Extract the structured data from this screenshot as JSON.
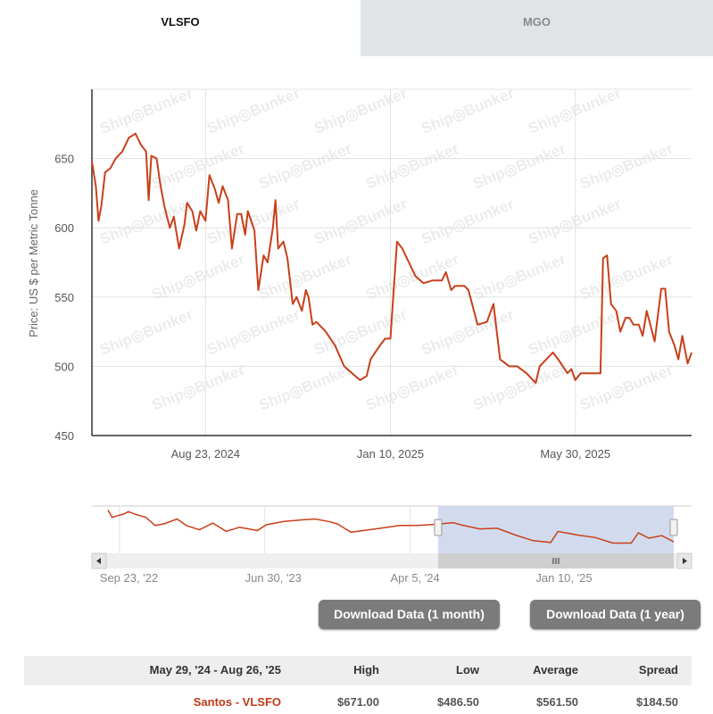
{
  "tabs": [
    {
      "label": "VLSFO",
      "active": true
    },
    {
      "label": "MGO",
      "active": false
    }
  ],
  "colors": {
    "line": "#c8401a",
    "navigator_mask": "#d2dbee",
    "tab_inactive": "#e1e4e7",
    "button": "#7b7b7b",
    "link": "#c0391b"
  },
  "watermark": "Ship◎Bunker",
  "chart_data": {
    "type": "line",
    "ylabel": "Price: US $ per Metric Tonne",
    "ylim": [
      450,
      700
    ],
    "yticks": [
      450,
      500,
      550,
      600,
      650
    ],
    "xlim": [
      "2024-05-29",
      "2025-08-26"
    ],
    "xticks": [
      {
        "date": "2024-08-23",
        "label": "Aug 23, 2024"
      },
      {
        "date": "2025-01-10",
        "label": "Jan 10, 2025"
      },
      {
        "date": "2025-05-30",
        "label": "May 30, 2025"
      }
    ],
    "grid": true,
    "series": [
      {
        "points": [
          [
            "2024-05-29",
            648
          ],
          [
            "2024-06-01",
            630
          ],
          [
            "2024-06-03",
            605
          ],
          [
            "2024-06-05",
            615
          ],
          [
            "2024-06-08",
            640
          ],
          [
            "2024-06-12",
            643
          ],
          [
            "2024-06-16",
            650
          ],
          [
            "2024-06-21",
            655
          ],
          [
            "2024-06-26",
            665
          ],
          [
            "2024-07-01",
            668
          ],
          [
            "2024-07-05",
            660
          ],
          [
            "2024-07-09",
            655
          ],
          [
            "2024-07-11",
            620
          ],
          [
            "2024-07-13",
            652
          ],
          [
            "2024-07-17",
            650
          ],
          [
            "2024-07-20",
            630
          ],
          [
            "2024-07-23",
            615
          ],
          [
            "2024-07-27",
            600
          ],
          [
            "2024-07-30",
            608
          ],
          [
            "2024-08-03",
            585
          ],
          [
            "2024-08-07",
            602
          ],
          [
            "2024-08-09",
            618
          ],
          [
            "2024-08-13",
            612
          ],
          [
            "2024-08-16",
            598
          ],
          [
            "2024-08-19",
            612
          ],
          [
            "2024-08-23",
            605
          ],
          [
            "2024-08-26",
            638
          ],
          [
            "2024-08-30",
            628
          ],
          [
            "2024-09-02",
            618
          ],
          [
            "2024-09-05",
            630
          ],
          [
            "2024-09-09",
            620
          ],
          [
            "2024-09-12",
            585
          ],
          [
            "2024-09-16",
            610
          ],
          [
            "2024-09-19",
            610
          ],
          [
            "2024-09-22",
            595
          ],
          [
            "2024-09-24",
            612
          ],
          [
            "2024-09-29",
            598
          ],
          [
            "2024-10-02",
            555
          ],
          [
            "2024-10-06",
            580
          ],
          [
            "2024-10-09",
            575
          ],
          [
            "2024-10-13",
            600
          ],
          [
            "2024-10-15",
            620
          ],
          [
            "2024-10-17",
            585
          ],
          [
            "2024-10-21",
            590
          ],
          [
            "2024-10-24",
            578
          ],
          [
            "2024-10-28",
            545
          ],
          [
            "2024-10-31",
            550
          ],
          [
            "2024-11-04",
            540
          ],
          [
            "2024-11-07",
            555
          ],
          [
            "2024-11-09",
            550
          ],
          [
            "2024-11-12",
            530
          ],
          [
            "2024-11-15",
            532
          ],
          [
            "2024-11-22",
            525
          ],
          [
            "2024-11-29",
            515
          ],
          [
            "2024-12-06",
            500
          ],
          [
            "2024-12-12",
            495
          ],
          [
            "2024-12-18",
            490
          ],
          [
            "2024-12-23",
            493
          ],
          [
            "2024-12-26",
            505
          ],
          [
            "2025-01-02",
            515
          ],
          [
            "2025-01-06",
            520
          ],
          [
            "2025-01-10",
            520
          ],
          [
            "2025-01-15",
            590
          ],
          [
            "2025-01-19",
            585
          ],
          [
            "2025-01-24",
            575
          ],
          [
            "2025-01-29",
            565
          ],
          [
            "2025-02-04",
            560
          ],
          [
            "2025-02-11",
            562
          ],
          [
            "2025-02-18",
            562
          ],
          [
            "2025-02-21",
            568
          ],
          [
            "2025-02-25",
            555
          ],
          [
            "2025-02-28",
            558
          ],
          [
            "2025-03-07",
            558
          ],
          [
            "2025-03-10",
            555
          ],
          [
            "2025-03-17",
            530
          ],
          [
            "2025-03-24",
            532
          ],
          [
            "2025-03-29",
            545
          ],
          [
            "2025-04-03",
            505
          ],
          [
            "2025-04-10",
            500
          ],
          [
            "2025-04-16",
            500
          ],
          [
            "2025-04-23",
            495
          ],
          [
            "2025-04-30",
            488
          ],
          [
            "2025-05-03",
            500
          ],
          [
            "2025-05-08",
            505
          ],
          [
            "2025-05-13",
            510
          ],
          [
            "2025-05-17",
            505
          ],
          [
            "2025-05-24",
            495
          ],
          [
            "2025-05-27",
            498
          ],
          [
            "2025-05-30",
            490
          ],
          [
            "2025-06-03",
            495
          ],
          [
            "2025-06-10",
            495
          ],
          [
            "2025-06-18",
            495
          ],
          [
            "2025-06-20",
            578
          ],
          [
            "2025-06-23",
            580
          ],
          [
            "2025-06-26",
            545
          ],
          [
            "2025-06-30",
            540
          ],
          [
            "2025-07-03",
            525
          ],
          [
            "2025-07-07",
            535
          ],
          [
            "2025-07-10",
            535
          ],
          [
            "2025-07-13",
            530
          ],
          [
            "2025-07-17",
            530
          ],
          [
            "2025-07-20",
            522
          ],
          [
            "2025-07-23",
            540
          ],
          [
            "2025-07-29",
            518
          ],
          [
            "2025-08-03",
            556
          ],
          [
            "2025-08-06",
            556
          ],
          [
            "2025-08-09",
            525
          ],
          [
            "2025-08-13",
            515
          ],
          [
            "2025-08-16",
            505
          ],
          [
            "2025-08-19",
            522
          ],
          [
            "2025-08-23",
            502
          ],
          [
            "2025-08-26",
            510
          ]
        ]
      }
    ],
    "navigator": {
      "xlim": [
        "2022-09-01",
        "2025-08-26"
      ],
      "xticks": [
        {
          "date": "2022-09-23",
          "label": "Sep 23, '22"
        },
        {
          "date": "2023-06-30",
          "label": "Jun 30, '23"
        },
        {
          "date": "2024-04-05",
          "label": "Apr 5, '24"
        },
        {
          "date": "2025-01-10",
          "label": "Jan 10, '25"
        }
      ],
      "selection": [
        "2024-05-29",
        "2025-08-26"
      ],
      "points": [
        [
          "2022-09-01",
          763
        ],
        [
          "2022-09-09",
          703
        ],
        [
          "2022-09-20",
          717
        ],
        [
          "2022-10-02",
          730
        ],
        [
          "2022-10-10",
          750
        ],
        [
          "2022-10-27",
          723
        ],
        [
          "2022-11-13",
          703
        ],
        [
          "2022-12-01",
          637
        ],
        [
          "2022-12-18",
          650
        ],
        [
          "2023-01-12",
          690
        ],
        [
          "2023-01-30",
          637
        ],
        [
          "2023-02-24",
          603
        ],
        [
          "2023-03-22",
          657
        ],
        [
          "2023-04-17",
          590
        ],
        [
          "2023-05-12",
          623
        ],
        [
          "2023-06-16",
          597
        ],
        [
          "2023-07-03",
          643
        ],
        [
          "2023-08-06",
          670
        ],
        [
          "2023-09-09",
          683
        ],
        [
          "2023-10-05",
          690
        ],
        [
          "2023-10-31",
          670
        ],
        [
          "2023-11-17",
          650
        ],
        [
          "2023-12-13",
          583
        ],
        [
          "2024-01-07",
          597
        ],
        [
          "2024-02-11",
          617
        ],
        [
          "2024-03-16",
          637
        ],
        [
          "2024-04-19",
          637
        ],
        [
          "2024-05-29",
          648
        ],
        [
          "2024-06-27",
          660
        ],
        [
          "2024-07-14",
          640
        ],
        [
          "2024-08-17",
          610
        ],
        [
          "2024-09-20",
          615
        ],
        [
          "2024-10-25",
          560
        ],
        [
          "2024-11-28",
          515
        ],
        [
          "2025-01-01",
          500
        ],
        [
          "2025-01-15",
          590
        ],
        [
          "2025-02-22",
          560
        ],
        [
          "2025-03-28",
          540
        ],
        [
          "2025-05-01",
          495
        ],
        [
          "2025-06-05",
          495
        ],
        [
          "2025-06-19",
          578
        ],
        [
          "2025-07-09",
          535
        ],
        [
          "2025-08-03",
          556
        ],
        [
          "2025-08-26",
          505
        ]
      ]
    }
  },
  "buttons": {
    "download_month": "Download Data (1 month)",
    "download_year": "Download Data (1 year)"
  },
  "stats": {
    "headers": [
      "May 29, '24 - Aug 26, '25",
      "High",
      "Low",
      "Average",
      "Spread"
    ],
    "rows": [
      {
        "name": "Santos - VLSFO",
        "high": "$671.00",
        "low": "$486.50",
        "average": "$561.50",
        "spread": "$184.50"
      }
    ]
  }
}
